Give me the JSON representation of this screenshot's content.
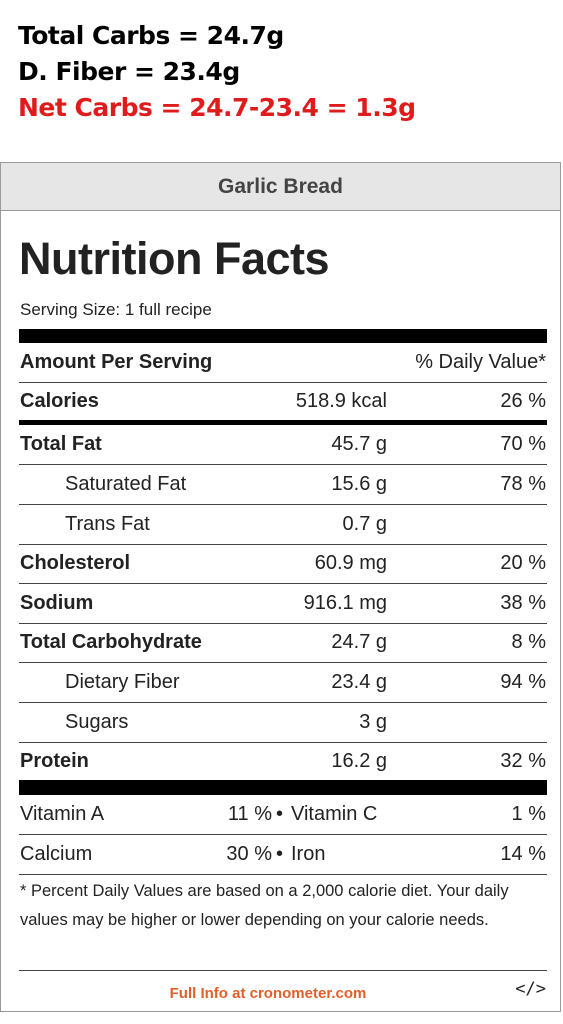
{
  "annotations": {
    "line1": "Total Carbs = 24.7g",
    "line2": "D. Fiber = 23.4g",
    "line3": "Net Carbs = 24.7-23.4 = 1.3g",
    "accent_color": "#e01b1b"
  },
  "label": {
    "header": "Garlic Bread",
    "title": "Nutrition Facts",
    "serving_size": "Serving Size: 1 full recipe",
    "amount_per_serving": "Amount Per Serving",
    "daily_value_header": "% Daily Value*",
    "rows": [
      {
        "name": "Calories",
        "amount": "518.9 kcal",
        "dv": "26 %"
      },
      {
        "name": "Total Fat",
        "amount": "45.7 g",
        "dv": "70 %"
      },
      {
        "name": "Saturated Fat",
        "amount": "15.6 g",
        "dv": "78 %"
      },
      {
        "name": "Trans Fat",
        "amount": "0.7 g",
        "dv": ""
      },
      {
        "name": "Cholesterol",
        "amount": "60.9 mg",
        "dv": "20 %"
      },
      {
        "name": "Sodium",
        "amount": "916.1 mg",
        "dv": "38 %"
      },
      {
        "name": "Total Carbohydrate",
        "amount": "24.7 g",
        "dv": "8 %"
      },
      {
        "name": "Dietary Fiber",
        "amount": "23.4 g",
        "dv": "94 %"
      },
      {
        "name": "Sugars",
        "amount": "3 g",
        "dv": ""
      },
      {
        "name": "Protein",
        "amount": "16.2 g",
        "dv": "32 %"
      }
    ],
    "vitamins": [
      {
        "left_name": "Vitamin A",
        "left_dv": "11 %",
        "bullet": "•",
        "right_name": "Vitamin C",
        "right_dv": "1 %"
      },
      {
        "left_name": "Calcium",
        "left_dv": "30 %",
        "bullet": "•",
        "right_name": "Iron",
        "right_dv": "14 %"
      }
    ],
    "footnote": "* Percent Daily Values are based on a 2,000 calorie diet. Your daily values may be higher or lower depending on your calorie needs.",
    "full_info_link": "Full Info at cronometer.com",
    "embed_icon": "</>",
    "link_color": "#e0602a"
  }
}
